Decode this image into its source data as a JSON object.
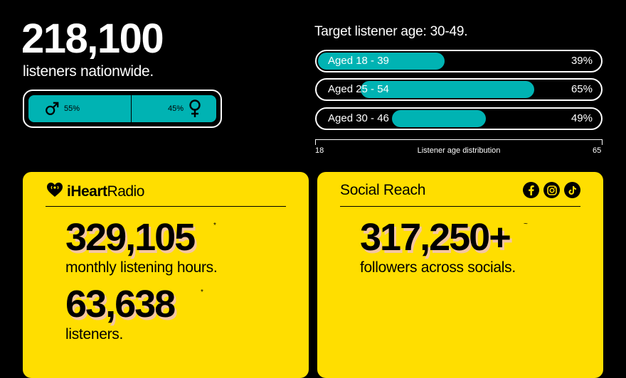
{
  "summary": {
    "listeners_total": "218,100",
    "listeners_caption": "listeners nationwide."
  },
  "gender": {
    "male_pct": "55%",
    "female_pct": "45%",
    "male_share": 0.55,
    "female_share": 0.45
  },
  "age": {
    "title": "Target listener age: 30-49.",
    "rows": [
      {
        "label": "Aged 18 - 39",
        "pct": "39%",
        "value": 0.39
      },
      {
        "label": "Aged 25 - 54",
        "pct": "65%",
        "value": 0.65
      },
      {
        "label": "Aged 30 - 46",
        "pct": "49%",
        "value": 0.49
      }
    ],
    "axis_min": "18",
    "axis_max": "65",
    "axis_label": "Listener age distribution"
  },
  "iheart": {
    "brand_bold": "iHeart",
    "brand_regular": "Radio",
    "hours": "329,105",
    "hours_mark": "*",
    "hours_caption": "monthly listening hours.",
    "listeners": "63,638",
    "listeners_mark": "*",
    "listeners_caption": "listeners."
  },
  "social": {
    "title": "Social Reach",
    "followers": "317,250+",
    "followers_mark": "~",
    "followers_caption": "followers across socials.",
    "icons": [
      "facebook-icon",
      "instagram-icon",
      "tiktok-icon"
    ]
  },
  "colors": {
    "accent_teal": "#00b3b3",
    "card_yellow": "#ffde00",
    "background": "#000000"
  }
}
